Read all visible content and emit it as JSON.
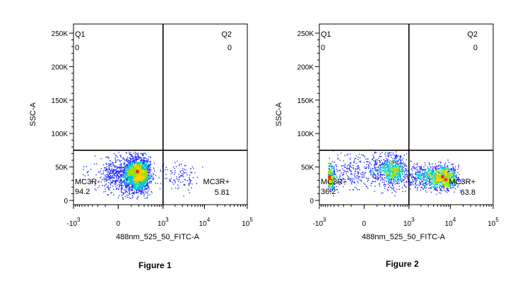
{
  "figures": [
    {
      "caption": "Figure 1"
    },
    {
      "caption": "Figure 2"
    }
  ],
  "chart_data": [
    {
      "type": "scatter",
      "title": "",
      "xlabel": "488nm_525_50_FITC-A",
      "ylabel": "SSC-A",
      "x_scale": "biexponential",
      "y_ticks": [
        {
          "value": 0,
          "label": "0"
        },
        {
          "value": 50000,
          "label": "50K"
        },
        {
          "value": 100000,
          "label": "100K"
        },
        {
          "value": 150000,
          "label": "150K"
        },
        {
          "value": 200000,
          "label": "200K"
        },
        {
          "value": 250000,
          "label": "250K"
        }
      ],
      "x_ticks": [
        {
          "value": -1000,
          "base": "-10",
          "exp": "3"
        },
        {
          "value": 0,
          "base": "0",
          "exp": ""
        },
        {
          "value": 1000,
          "base": "10",
          "exp": "3"
        },
        {
          "value": 10000,
          "base": "10",
          "exp": "4"
        },
        {
          "value": 100000,
          "base": "10",
          "exp": "5"
        }
      ],
      "ylim": [
        0,
        260000
      ],
      "gate": {
        "x": 1000,
        "y": 75000
      },
      "quadrants": [
        {
          "name": "Q1",
          "value": "0",
          "position": "top-left"
        },
        {
          "name": "Q2",
          "value": "0",
          "position": "top-right"
        },
        {
          "name": "MC3R-",
          "value": "94.2",
          "position": "bottom-left"
        },
        {
          "name": "MC3R+",
          "value": "5.81",
          "position": "bottom-right"
        }
      ],
      "populations": [
        {
          "x_center": 150,
          "y_center": 40000,
          "x_spread": 120,
          "y_spread": 13000,
          "share": 0.94
        },
        {
          "x_center": 2000,
          "y_center": 38000,
          "x_spread": 1800,
          "y_spread": 10000,
          "share": 0.06
        }
      ],
      "colors": {
        "low": "#1f2bff",
        "mid": "#00c8c8",
        "midhigh": "#9be000",
        "high": "#ffd000",
        "peak": "#ff1a00"
      }
    },
    {
      "type": "scatter",
      "title": "",
      "xlabel": "488nm_525_50_FITC-A",
      "ylabel": "SSC-A",
      "x_scale": "biexponential",
      "y_ticks": [
        {
          "value": 0,
          "label": "0"
        },
        {
          "value": 50000,
          "label": "50K"
        },
        {
          "value": 100000,
          "label": "100K"
        },
        {
          "value": 150000,
          "label": "150K"
        },
        {
          "value": 200000,
          "label": "200K"
        },
        {
          "value": 250000,
          "label": "250K"
        }
      ],
      "x_ticks": [
        {
          "value": -1000,
          "base": "-10",
          "exp": "3"
        },
        {
          "value": 0,
          "base": "0",
          "exp": ""
        },
        {
          "value": 1000,
          "base": "10",
          "exp": "3"
        },
        {
          "value": 10000,
          "base": "10",
          "exp": "4"
        },
        {
          "value": 100000,
          "base": "10",
          "exp": "5"
        }
      ],
      "ylim": [
        0,
        260000
      ],
      "gate": {
        "x": 1000,
        "y": 75000
      },
      "quadrants": [
        {
          "name": "Q1",
          "value": "0",
          "position": "top-left"
        },
        {
          "name": "Q2",
          "value": "0",
          "position": "top-right"
        },
        {
          "name": "MC3R-",
          "value": "36.2",
          "position": "bottom-left"
        },
        {
          "name": "MC3R+",
          "value": "63.8",
          "position": "bottom-right"
        }
      ],
      "populations": [
        {
          "x_center": 250,
          "y_center": 45000,
          "x_spread": 250,
          "y_spread": 12000,
          "share": 0.36
        },
        {
          "x_center": 4000,
          "y_center": 35000,
          "x_spread": 4500,
          "y_spread": 9000,
          "share": 0.64
        }
      ],
      "colors": {
        "low": "#1f2bff",
        "mid": "#00c8c8",
        "midhigh": "#9be000",
        "high": "#ffd000",
        "peak": "#ff1a00"
      }
    }
  ]
}
